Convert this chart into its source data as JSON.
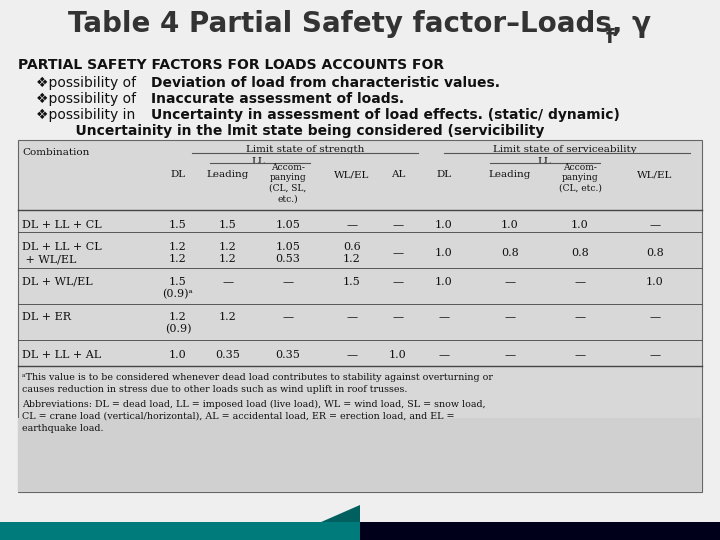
{
  "bg_color": "#efefef",
  "title": "Table 4 Partial Safety factor–Loads, γ",
  "title_sub": "f",
  "header": "PARTIAL SAFETY FACTORS FOR LOADS ACCOUNTS FOR",
  "b1_pre": "❖possibility of ",
  "b1_bold": "Deviation of load from characteristic values.",
  "b2_pre": "❖possibility of ",
  "b2_bold": "Inaccurate assessment of loads.",
  "b3_pre": "❖possibility in ",
  "b3_bold": "Uncertainty in assessment of load effects. (static/ dynamic)",
  "b4_bold": "    Uncertainity in the lmit state being considered (servicibility",
  "fn1": "ᵃThis value is to be considered whenever dead load contributes to stability against overturning or",
  "fn2": "causes reduction in stress due to other loads such as wind uplift in roof trusses.",
  "fn3": "Abbreviations: DL = dead load, LL = imposed load (live load), WL = wind load, SL = snow load,",
  "fn4": "CL = crane load (vertical/horizontal), AL = accidental load, ER = erection load, and EL =",
  "fn5": "earthquake load.",
  "teal": "#007b7b",
  "dark": "#00001a"
}
